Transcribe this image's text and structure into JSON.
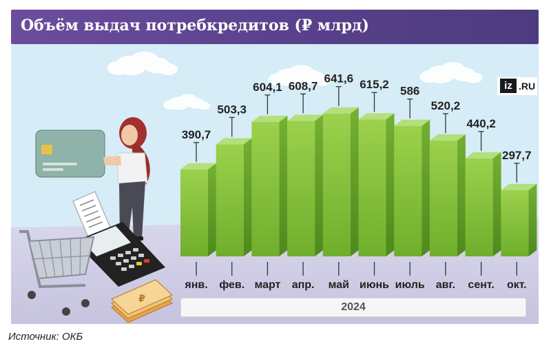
{
  "title": "Объём выдач потребкредитов (₽ млрд)",
  "logo": {
    "mark": "iz",
    "suffix": ".RU"
  },
  "source": "Источник: ОКБ",
  "chart_data": {
    "type": "bar",
    "title": "Объём выдач потребкредитов (₽ млрд)",
    "categories": [
      "янв.",
      "фев.",
      "март",
      "апр.",
      "май",
      "июнь",
      "июль",
      "авг.",
      "сент.",
      "окт."
    ],
    "values": [
      390.7,
      503.3,
      604.1,
      608.7,
      641.6,
      615.2,
      586,
      520.2,
      440.2,
      297.7
    ],
    "value_labels": [
      "390,7",
      "503,3",
      "604,1",
      "608,7",
      "641,6",
      "615,2",
      "586",
      "520,2",
      "440,2",
      "297,7"
    ],
    "year_label": "2024",
    "unit": "₽ млрд",
    "grid": false,
    "legend": "none"
  },
  "colors": {
    "bar_front": "#86c23a",
    "bar_side": "#5e9a22",
    "bar_top": "#b3df7c",
    "title_bg": "#5b428e"
  },
  "illustration": {
    "elements": [
      "woman-with-card",
      "bank-card-icon",
      "shopping-cart-icon",
      "payment-terminal-icon",
      "receipt-icon",
      "ruble-money-stack-icon",
      "clouds"
    ]
  }
}
